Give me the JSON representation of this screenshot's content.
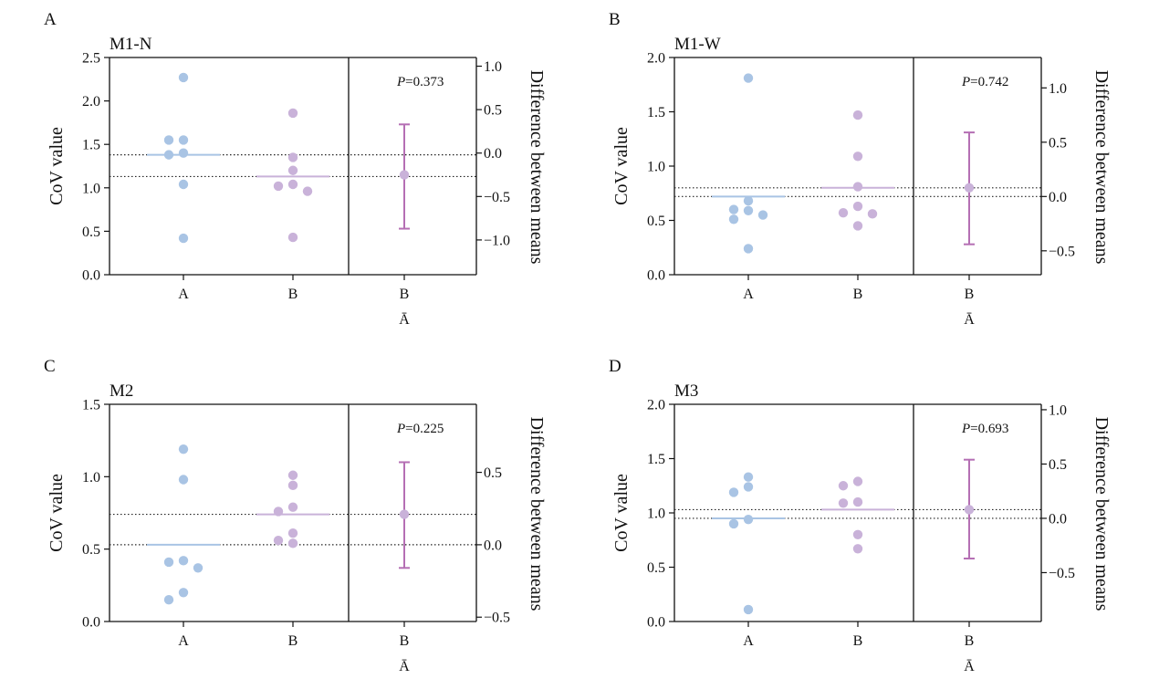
{
  "chart_data": [
    {
      "panel": "A",
      "type": "scatter",
      "title": "M1-N",
      "ylabel": "CoV value",
      "y2label": "Difference between means",
      "categories": [
        "A",
        "B",
        "B\nĀ"
      ],
      "ylim": [
        0,
        2.5
      ],
      "yticks": [
        "0.0",
        "0.5",
        "1.0",
        "1.5",
        "2.0",
        "2.5"
      ],
      "y2lim": [
        -1.4,
        1.1
      ],
      "y2ticks": [
        "−1.0",
        "−0.5",
        "0.0",
        "0.5",
        "1.0"
      ],
      "series": [
        {
          "values": [
            2.27,
            1.55,
            1.55,
            1.4,
            1.38,
            1.04,
            0.42
          ],
          "mean": 1.38
        },
        {
          "values": [
            1.86,
            1.35,
            1.2,
            1.04,
            1.02,
            0.96,
            0.43
          ],
          "mean": 1.13
        }
      ],
      "difference": {
        "mean": -0.25,
        "ci": [
          -0.87,
          0.33
        ]
      },
      "p_text": "=0.373",
      "p_label": "P",
      "colors": {
        "A": "#a9c4e4",
        "B": "#c9b2d9",
        "diff": "#b56fb4"
      }
    },
    {
      "panel": "B",
      "type": "scatter",
      "title": "M1-W",
      "ylabel": "CoV value",
      "y2label": "Difference between means",
      "categories": [
        "A",
        "B",
        "B\nĀ"
      ],
      "ylim": [
        0,
        2.0
      ],
      "yticks": [
        "0.0",
        "0.5",
        "1.0",
        "1.5",
        "2.0"
      ],
      "y2lim": [
        -0.72,
        1.28
      ],
      "y2ticks": [
        "−0.5",
        "0.0",
        "0.5",
        "1.0"
      ],
      "series": [
        {
          "values": [
            1.81,
            0.68,
            0.6,
            0.59,
            0.55,
            0.51,
            0.24
          ],
          "mean": 0.72
        },
        {
          "values": [
            1.47,
            1.09,
            0.81,
            0.63,
            0.57,
            0.56,
            0.45
          ],
          "mean": 0.8
        }
      ],
      "difference": {
        "mean": 0.08,
        "ci": [
          -0.44,
          0.59
        ]
      },
      "p_text": "=0.742",
      "p_label": "P",
      "colors": {
        "A": "#a9c4e4",
        "B": "#c9b2d9",
        "diff": "#b56fb4"
      }
    },
    {
      "panel": "C",
      "type": "scatter",
      "title": "M2",
      "ylabel": "CoV value",
      "y2label": "Difference between means",
      "categories": [
        "A",
        "B",
        "B\nĀ"
      ],
      "ylim": [
        0,
        1.5
      ],
      "yticks": [
        "0.0",
        "0.5",
        "1.0",
        "1.5"
      ],
      "y2lim": [
        -0.53,
        0.97
      ],
      "y2ticks": [
        "−0.5",
        "0.0",
        "0.5"
      ],
      "series": [
        {
          "values": [
            1.19,
            0.98,
            0.42,
            0.41,
            0.37,
            0.2,
            0.15
          ],
          "mean": 0.53
        },
        {
          "values": [
            1.01,
            0.94,
            0.79,
            0.76,
            0.61,
            0.56,
            0.54
          ],
          "mean": 0.74
        }
      ],
      "difference": {
        "mean": 0.21,
        "ci": [
          -0.16,
          0.57
        ]
      },
      "p_text": "=0.225",
      "p_label": "P",
      "colors": {
        "A": "#a9c4e4",
        "B": "#c9b2d9",
        "diff": "#b56fb4"
      }
    },
    {
      "panel": "D",
      "type": "scatter",
      "title": "M3",
      "ylabel": "CoV value",
      "y2label": "Difference between means",
      "categories": [
        "A",
        "B",
        "B\nĀ"
      ],
      "ylim": [
        0,
        2.0
      ],
      "yticks": [
        "0.0",
        "0.5",
        "1.0",
        "1.5",
        "2.0"
      ],
      "y2lim": [
        -0.95,
        1.05
      ],
      "y2ticks": [
        "−0.5",
        "0.0",
        "0.5",
        "1.0"
      ],
      "series": [
        {
          "values": [
            1.33,
            1.24,
            1.19,
            0.94,
            0.9,
            0.11
          ],
          "mean": 0.95
        },
        {
          "values": [
            1.29,
            1.25,
            1.1,
            1.09,
            0.8,
            0.67
          ],
          "mean": 1.03
        }
      ],
      "difference": {
        "mean": 0.08,
        "ci": [
          -0.37,
          0.54
        ]
      },
      "p_text": "=0.693",
      "p_label": "P",
      "colors": {
        "A": "#a9c4e4",
        "B": "#c9b2d9",
        "diff": "#b56fb4"
      }
    }
  ]
}
